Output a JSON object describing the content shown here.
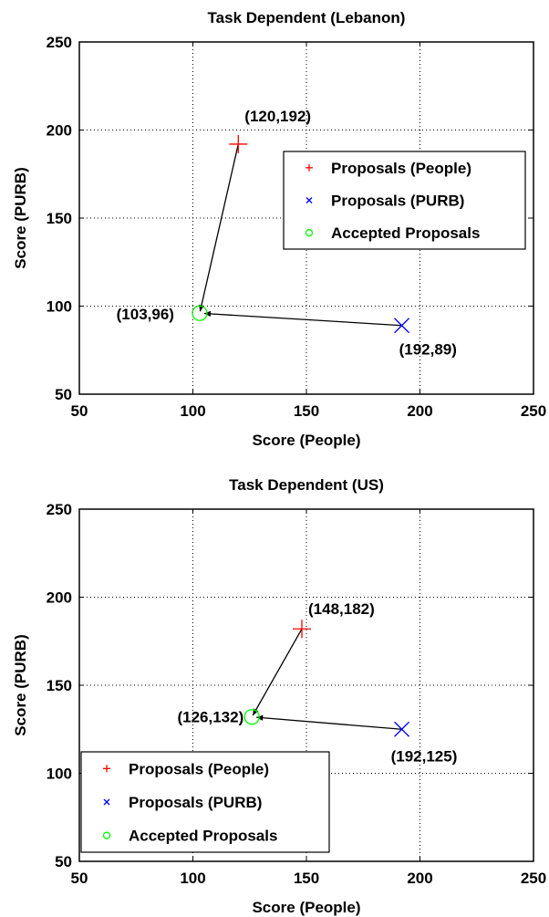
{
  "chart_data": [
    {
      "type": "scatter",
      "title": "Task Dependent (Lebanon)",
      "xlabel": "Score (People)",
      "ylabel": "Score (PURB)",
      "xlim": [
        50,
        250
      ],
      "ylim": [
        50,
        250
      ],
      "xticks": [
        "50",
        "100",
        "150",
        "200",
        "250"
      ],
      "yticks": [
        "50",
        "100",
        "150",
        "200",
        "250"
      ],
      "grid": true,
      "legend_position": "top-right",
      "legend": [
        {
          "label": "Proposals (People)",
          "marker": "+",
          "color": "#ff0000"
        },
        {
          "label": "Proposals (PURB)",
          "marker": "x",
          "color": "#0000ff"
        },
        {
          "label": "Accepted Proposals",
          "marker": "o",
          "color": "#00ff00"
        }
      ],
      "points": {
        "people": {
          "x": 120,
          "y": 192,
          "label": "(120,192)"
        },
        "purb": {
          "x": 192,
          "y": 89,
          "label": "(192,89)"
        },
        "accepted": {
          "x": 103,
          "y": 96,
          "label": "(103,96)"
        }
      }
    },
    {
      "type": "scatter",
      "title": "Task Dependent (US)",
      "xlabel": "Score (People)",
      "ylabel": "Score (PURB)",
      "xlim": [
        50,
        250
      ],
      "ylim": [
        50,
        250
      ],
      "xticks": [
        "50",
        "100",
        "150",
        "200",
        "250"
      ],
      "yticks": [
        "50",
        "100",
        "150",
        "200",
        "250"
      ],
      "grid": true,
      "legend_position": "bottom-left",
      "legend": [
        {
          "label": "Proposals (People)",
          "marker": "+",
          "color": "#ff0000"
        },
        {
          "label": "Proposals (PURB)",
          "marker": "x",
          "color": "#0000ff"
        },
        {
          "label": "Accepted Proposals",
          "marker": "o",
          "color": "#00ff00"
        }
      ],
      "points": {
        "people": {
          "x": 148,
          "y": 182,
          "label": "(148,182)"
        },
        "purb": {
          "x": 192,
          "y": 125,
          "label": "(192,125)"
        },
        "accepted": {
          "x": 126,
          "y": 132,
          "label": "(126,132)"
        }
      }
    }
  ]
}
